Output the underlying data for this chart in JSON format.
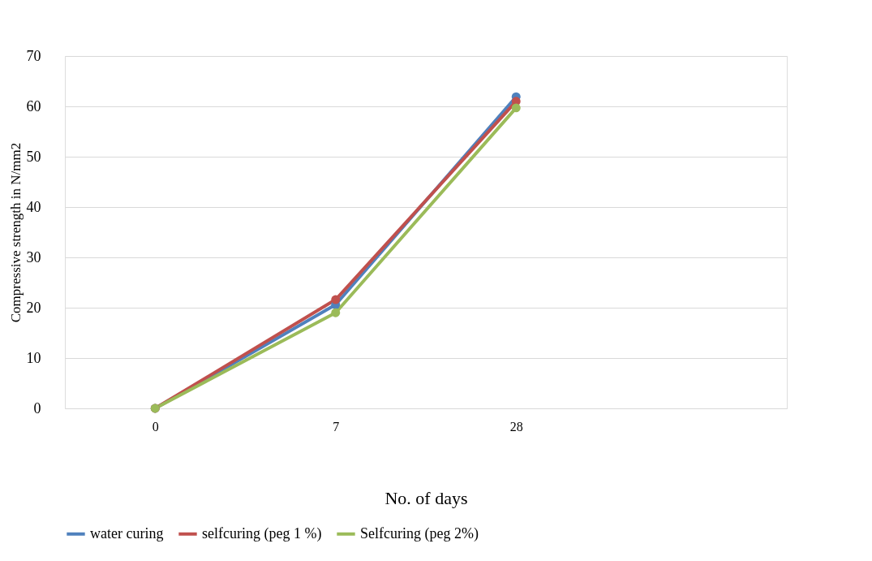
{
  "chart_data": {
    "type": "line",
    "xlabel": "No. of days",
    "ylabel": "Compressive strength in N/mm2",
    "categories": [
      "0",
      "7",
      "28"
    ],
    "ylim": [
      0,
      70
    ],
    "yticks": [
      0,
      10,
      20,
      30,
      40,
      50,
      60,
      70
    ],
    "grid": "y",
    "legend": "bottom",
    "marker": "circle",
    "line_style": "solid",
    "series": [
      {
        "name": "water curing",
        "color": "#4f81bd",
        "values": [
          0,
          20.6,
          61.9
        ]
      },
      {
        "name": "selfcuring (peg 1 %)",
        "color": "#c0504d",
        "values": [
          0,
          21.6,
          61.0
        ]
      },
      {
        "name": "Selfcuring (peg 2%)",
        "color": "#9bbb59",
        "values": [
          0,
          19.0,
          59.7
        ]
      }
    ]
  }
}
